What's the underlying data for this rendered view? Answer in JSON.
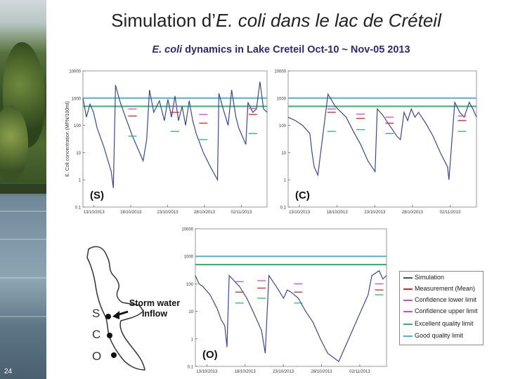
{
  "slide": {
    "title_prefix": "Simulation d’",
    "title_italic": "E. coli dans le lac de Créteil",
    "subtitle_italic": "E. coli",
    "subtitle_rest": " dynamics in Lake Creteil Oct-10 ~ Nov-05 2013",
    "page_number": "24"
  },
  "colors": {
    "simulation": "#3a4a8c",
    "mean": "#d62728",
    "lower": "#c34fc3",
    "upper": "#e040e0",
    "excellent": "#2bb673",
    "good": "#4fb3d9"
  },
  "chart_data": [
    {
      "type": "line",
      "panel": "(S)",
      "ylabel": "E. Coli concentration (MPN/100ml)",
      "yscale": "log",
      "ylim": [
        0.1,
        10000
      ],
      "yticks": [
        "10000",
        "1000",
        "100",
        "10",
        "1",
        "0.1"
      ],
      "xticks": [
        "13/10/2013",
        "18/10/2013",
        "23/10/2013",
        "28/10/2013",
        "02/11/2013"
      ],
      "xlim": [
        0,
        26
      ],
      "thresholds": {
        "excellent": 500,
        "good": 1000
      },
      "simulation": [
        [
          0,
          1000
        ],
        [
          0.5,
          200
        ],
        [
          1,
          600
        ],
        [
          1.5,
          300
        ],
        [
          2,
          80
        ],
        [
          3,
          15
        ],
        [
          4,
          2
        ],
        [
          4.3,
          0.5
        ],
        [
          4.6,
          3000
        ],
        [
          5.2,
          800
        ],
        [
          6,
          200
        ],
        [
          7,
          40
        ],
        [
          8.5,
          5
        ],
        [
          9,
          30
        ],
        [
          9.4,
          2000
        ],
        [
          10,
          300
        ],
        [
          10.8,
          800
        ],
        [
          11.5,
          150
        ],
        [
          12,
          900
        ],
        [
          12.5,
          200
        ],
        [
          13,
          1200
        ],
        [
          13.5,
          150
        ],
        [
          14,
          500
        ],
        [
          14.5,
          100
        ],
        [
          15,
          800
        ],
        [
          15.5,
          150
        ],
        [
          16,
          50
        ],
        [
          17,
          10
        ],
        [
          18,
          3
        ],
        [
          19,
          1
        ],
        [
          19.2,
          1500
        ],
        [
          19.8,
          400
        ],
        [
          20.5,
          100
        ],
        [
          21,
          2000
        ],
        [
          21.6,
          200
        ],
        [
          22,
          80
        ],
        [
          23,
          20
        ],
        [
          23.3,
          700
        ],
        [
          24,
          300
        ],
        [
          24.5,
          400
        ],
        [
          25,
          4000
        ],
        [
          25.5,
          400
        ],
        [
          26,
          300
        ]
      ],
      "measurements": [
        {
          "x": 7,
          "mean": 220,
          "lower": 40,
          "upper": 400
        },
        {
          "x": 13,
          "mean": 300,
          "lower": 60,
          "upper": 500
        },
        {
          "x": 17,
          "mean": 120,
          "lower": 30,
          "upper": 250
        },
        {
          "x": 24,
          "mean": 250,
          "lower": 50,
          "upper": 420
        }
      ]
    },
    {
      "type": "line",
      "panel": "(C)",
      "yscale": "log",
      "ylim": [
        0.1,
        10000
      ],
      "yticks": [
        "10000",
        "1000",
        "100",
        "10",
        "1",
        "0.1"
      ],
      "xticks": [
        "13/10/2013",
        "18/10/2013",
        "23/10/2013",
        "28/10/2013",
        "02/11/2013"
      ],
      "xlim": [
        0,
        26
      ],
      "thresholds": {
        "excellent": 500,
        "good": 1000
      },
      "simulation": [
        [
          0,
          200
        ],
        [
          1,
          150
        ],
        [
          2,
          100
        ],
        [
          3,
          50
        ],
        [
          3.3,
          10
        ],
        [
          3.6,
          3
        ],
        [
          4.1,
          1.5
        ],
        [
          5.5,
          1400
        ],
        [
          6.5,
          500
        ],
        [
          8,
          200
        ],
        [
          9,
          60
        ],
        [
          10,
          20
        ],
        [
          11,
          5
        ],
        [
          12,
          2
        ],
        [
          12.3,
          400
        ],
        [
          13,
          250
        ],
        [
          14,
          100
        ],
        [
          15,
          40
        ],
        [
          15.5,
          30
        ],
        [
          16,
          300
        ],
        [
          16.5,
          150
        ],
        [
          17,
          400
        ],
        [
          17.5,
          200
        ],
        [
          18,
          300
        ],
        [
          19,
          120
        ],
        [
          20,
          40
        ],
        [
          21,
          10
        ],
        [
          22,
          3
        ],
        [
          22.2,
          1
        ],
        [
          23,
          700
        ],
        [
          23.7,
          300
        ],
        [
          24.3,
          200
        ],
        [
          25,
          700
        ],
        [
          25.5,
          400
        ],
        [
          26,
          200
        ]
      ],
      "measurements": [
        {
          "x": 6,
          "mean": 300,
          "lower": 60,
          "upper": 400
        },
        {
          "x": 10,
          "mean": 180,
          "lower": 70,
          "upper": 260
        },
        {
          "x": 14,
          "mean": 120,
          "lower": 50,
          "upper": 200
        },
        {
          "x": 24,
          "mean": 150,
          "lower": 60,
          "upper": 220
        }
      ]
    },
    {
      "type": "line",
      "panel": "(O)",
      "yscale": "log",
      "ylim": [
        0.1,
        10000
      ],
      "yticks": [
        "10000",
        "1000",
        "100",
        "10",
        "1",
        "0.1"
      ],
      "xticks": [
        "13/10/2013",
        "18/10/2013",
        "23/10/2013",
        "28/10/2013",
        "02/11/2013"
      ],
      "xlim": [
        0,
        26
      ],
      "thresholds": {
        "excellent": 500,
        "good": 1000
      },
      "simulation": [
        [
          0,
          200
        ],
        [
          0.5,
          100
        ],
        [
          1,
          80
        ],
        [
          2,
          40
        ],
        [
          3,
          12
        ],
        [
          3.5,
          5
        ],
        [
          4,
          3
        ],
        [
          4.3,
          0.5
        ],
        [
          4.6,
          200
        ],
        [
          6,
          80
        ],
        [
          7,
          30
        ],
        [
          8,
          8
        ],
        [
          9,
          2
        ],
        [
          9.5,
          0.3
        ],
        [
          10,
          200
        ],
        [
          11,
          80
        ],
        [
          12,
          30
        ],
        [
          12.5,
          60
        ],
        [
          13,
          50
        ],
        [
          14,
          30
        ],
        [
          15,
          10
        ],
        [
          16,
          4
        ],
        [
          17,
          1
        ],
        [
          18,
          0.3
        ],
        [
          19.5,
          0.15
        ],
        [
          22,
          5
        ],
        [
          23.5,
          40
        ],
        [
          24,
          200
        ],
        [
          25,
          300
        ],
        [
          25.5,
          150
        ],
        [
          26,
          200
        ]
      ],
      "measurements": [
        {
          "x": 6,
          "mean": 50,
          "lower": 20,
          "upper": 120
        },
        {
          "x": 9,
          "mean": 70,
          "lower": 30,
          "upper": 130
        },
        {
          "x": 14,
          "mean": 50,
          "lower": 20,
          "upper": 100
        },
        {
          "x": 25,
          "mean": 60,
          "lower": 40,
          "upper": 100
        }
      ]
    }
  ],
  "legend": [
    {
      "label": "Simulation",
      "color_key": "simulation"
    },
    {
      "label": "Measurement (Mean)",
      "color_key": "mean"
    },
    {
      "label": "Confidence lower limit",
      "color_key": "lower"
    },
    {
      "label": "Confidence upper limit",
      "color_key": "upper"
    },
    {
      "label": "Excellent quality limit",
      "color_key": "excellent"
    },
    {
      "label": "Good quality limit",
      "color_key": "good"
    }
  ],
  "map": {
    "storm_line1": "Storm water",
    "storm_line2": "inflow",
    "site_s": "S",
    "site_c": "C",
    "site_o": "O"
  }
}
